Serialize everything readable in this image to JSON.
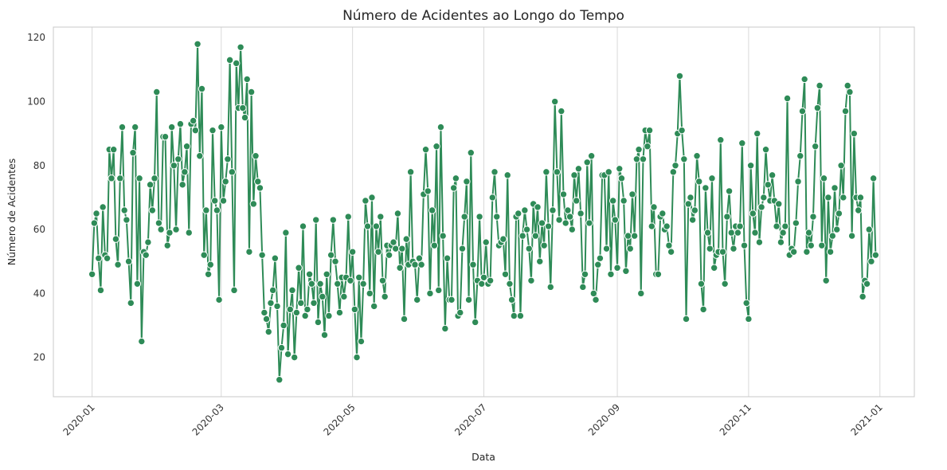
{
  "chart_data": {
    "type": "line",
    "title": "Número de Acidentes ao Longo do Tempo",
    "xlabel": "Data",
    "ylabel": "Número de Acidentes",
    "x_start": "2020-01-01",
    "x_end": "2020-12-30",
    "xlim": [
      "2019-12-14",
      "2021-01-17"
    ],
    "ylim": [
      7.7,
      123.3
    ],
    "x_ticks": [
      "2020-01",
      "2020-03",
      "2020-05",
      "2020-07",
      "2020-09",
      "2020-11",
      "2021-01"
    ],
    "y_ticks": [
      20,
      40,
      60,
      80,
      100,
      120
    ],
    "grid": "vertical",
    "series": [
      {
        "color": "#2e8b57",
        "marker": "circle",
        "values": [
          46,
          62,
          65,
          51,
          41,
          67,
          52,
          51,
          85,
          76,
          85,
          57,
          49,
          76,
          92,
          66,
          63,
          50,
          37,
          84,
          92,
          43,
          76,
          25,
          53,
          52,
          56,
          74,
          66,
          76,
          103,
          62,
          60,
          89,
          89,
          55,
          59,
          92,
          80,
          60,
          82,
          93,
          74,
          78,
          86,
          59,
          93,
          94,
          91,
          118,
          83,
          104,
          52,
          66,
          46,
          49,
          91,
          69,
          66,
          38,
          92,
          69,
          75,
          82,
          113,
          78,
          41,
          112,
          98,
          117,
          98,
          95,
          107,
          53,
          103,
          68,
          83,
          75,
          73,
          52,
          34,
          32,
          28,
          37,
          41,
          51,
          36,
          13,
          23,
          30,
          59,
          21,
          35,
          41,
          20,
          34,
          48,
          37,
          61,
          33,
          35,
          46,
          43,
          37,
          63,
          31,
          43,
          39,
          27,
          46,
          33,
          52,
          63,
          50,
          43,
          34,
          45,
          39,
          45,
          64,
          44,
          53,
          35,
          20,
          45,
          25,
          43,
          69,
          61,
          40,
          70,
          36,
          61,
          53,
          64,
          44,
          39,
          55,
          52,
          55,
          56,
          54,
          65,
          48,
          54,
          32,
          57,
          49,
          78,
          50,
          49,
          38,
          51,
          49,
          71,
          85,
          72,
          40,
          66,
          55,
          86,
          41,
          92,
          58,
          29,
          51,
          38,
          38,
          73,
          76,
          33,
          34,
          54,
          64,
          75,
          38,
          84,
          49,
          31,
          44,
          64,
          43,
          45,
          56,
          43,
          44,
          70,
          78,
          64,
          55,
          56,
          57,
          46,
          77,
          43,
          38,
          33,
          64,
          65,
          33,
          58,
          66,
          60,
          54,
          44,
          68,
          58,
          67,
          50,
          62,
          55,
          78,
          61,
          42,
          66,
          100,
          78,
          63,
          97,
          71,
          62,
          66,
          64,
          60,
          77,
          69,
          79,
          65,
          42,
          46,
          81,
          62,
          83,
          40,
          38,
          49,
          51,
          77,
          77,
          54,
          78,
          46,
          69,
          63,
          48,
          79,
          76,
          69,
          47,
          58,
          54,
          71,
          58,
          82,
          85,
          40,
          82,
          91,
          86,
          91,
          61,
          67,
          46,
          46,
          64,
          65,
          60,
          61,
          55,
          53,
          78,
          80,
          90,
          108,
          91,
          82,
          32,
          68,
          70,
          63,
          66,
          83,
          75,
          43,
          35,
          73,
          59,
          54,
          76,
          48,
          52,
          53,
          88,
          53,
          43,
          64,
          72,
          59,
          54,
          61,
          59,
          61,
          87,
          55,
          37,
          32,
          80,
          65,
          59,
          90,
          56,
          67,
          70,
          85,
          74,
          69,
          77,
          69,
          61,
          68,
          56,
          59,
          61,
          101,
          52,
          54,
          53,
          62,
          75,
          83,
          97,
          107,
          53,
          59,
          55,
          64,
          86,
          98,
          105,
          55,
          76,
          44,
          70,
          53,
          58,
          73,
          60,
          65,
          80,
          70,
          97,
          105,
          103,
          58,
          90,
          70,
          66,
          70,
          39,
          44,
          43,
          60,
          50,
          76,
          52
        ]
      }
    ]
  }
}
